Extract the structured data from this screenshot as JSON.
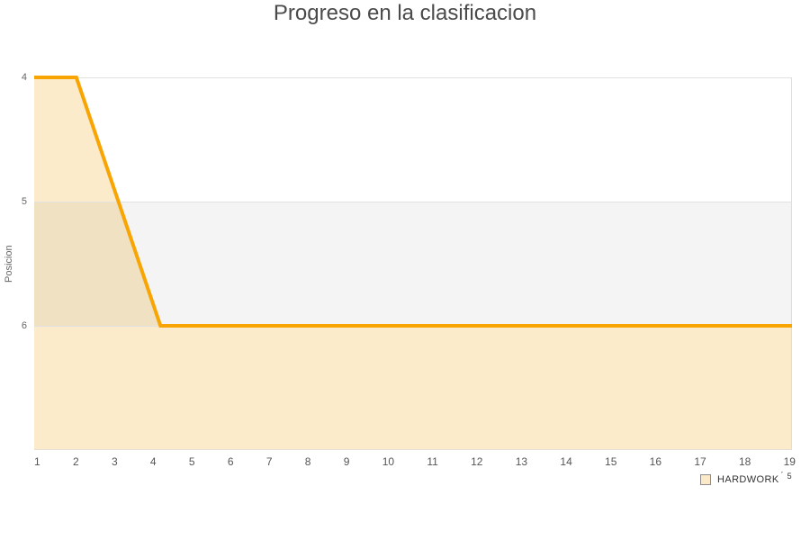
{
  "title": "Progreso en la clasificacion",
  "chart_data": {
    "type": "area",
    "title": "Progreso en la clasificacion",
    "x": [
      1,
      2,
      3,
      4,
      5,
      6,
      7,
      8,
      9,
      10,
      11,
      12,
      13,
      14,
      15,
      16,
      17,
      18,
      19
    ],
    "series": [
      {
        "name": "HARDWORK",
        "values": [
          4,
          4,
          5,
          6,
          6,
          6,
          6,
          6,
          6,
          6,
          6,
          6,
          6,
          6,
          6,
          6,
          6,
          6,
          6
        ]
      }
    ],
    "xlabel": "",
    "ylabel": "Posicion",
    "ylim": [
      4,
      7
    ],
    "y_ticks": [
      4,
      5,
      6
    ],
    "y_axis_inverted": true,
    "grid": true,
    "legend_position": "bottom-right",
    "highlight_band": {
      "from": 5,
      "to": 6
    }
  },
  "legend": {
    "label_suffix_mark": "´",
    "label_superscript": "5"
  },
  "colors": {
    "line": "#F8A503",
    "area_fill": "#FCEBCB",
    "band_fill": "rgba(100,100,105,0.07)",
    "gridline": "#E1E1E1",
    "axis_line": "#E6E0D4",
    "right_edge": "#DDDDDD",
    "title_text": "#4A4A4A",
    "axis_text": "#666666",
    "x_tick_text": "#555555",
    "legend_text": "#333333",
    "legend_swatch_fill": "#FBE9C8",
    "legend_swatch_border": "#8C8C8C"
  }
}
